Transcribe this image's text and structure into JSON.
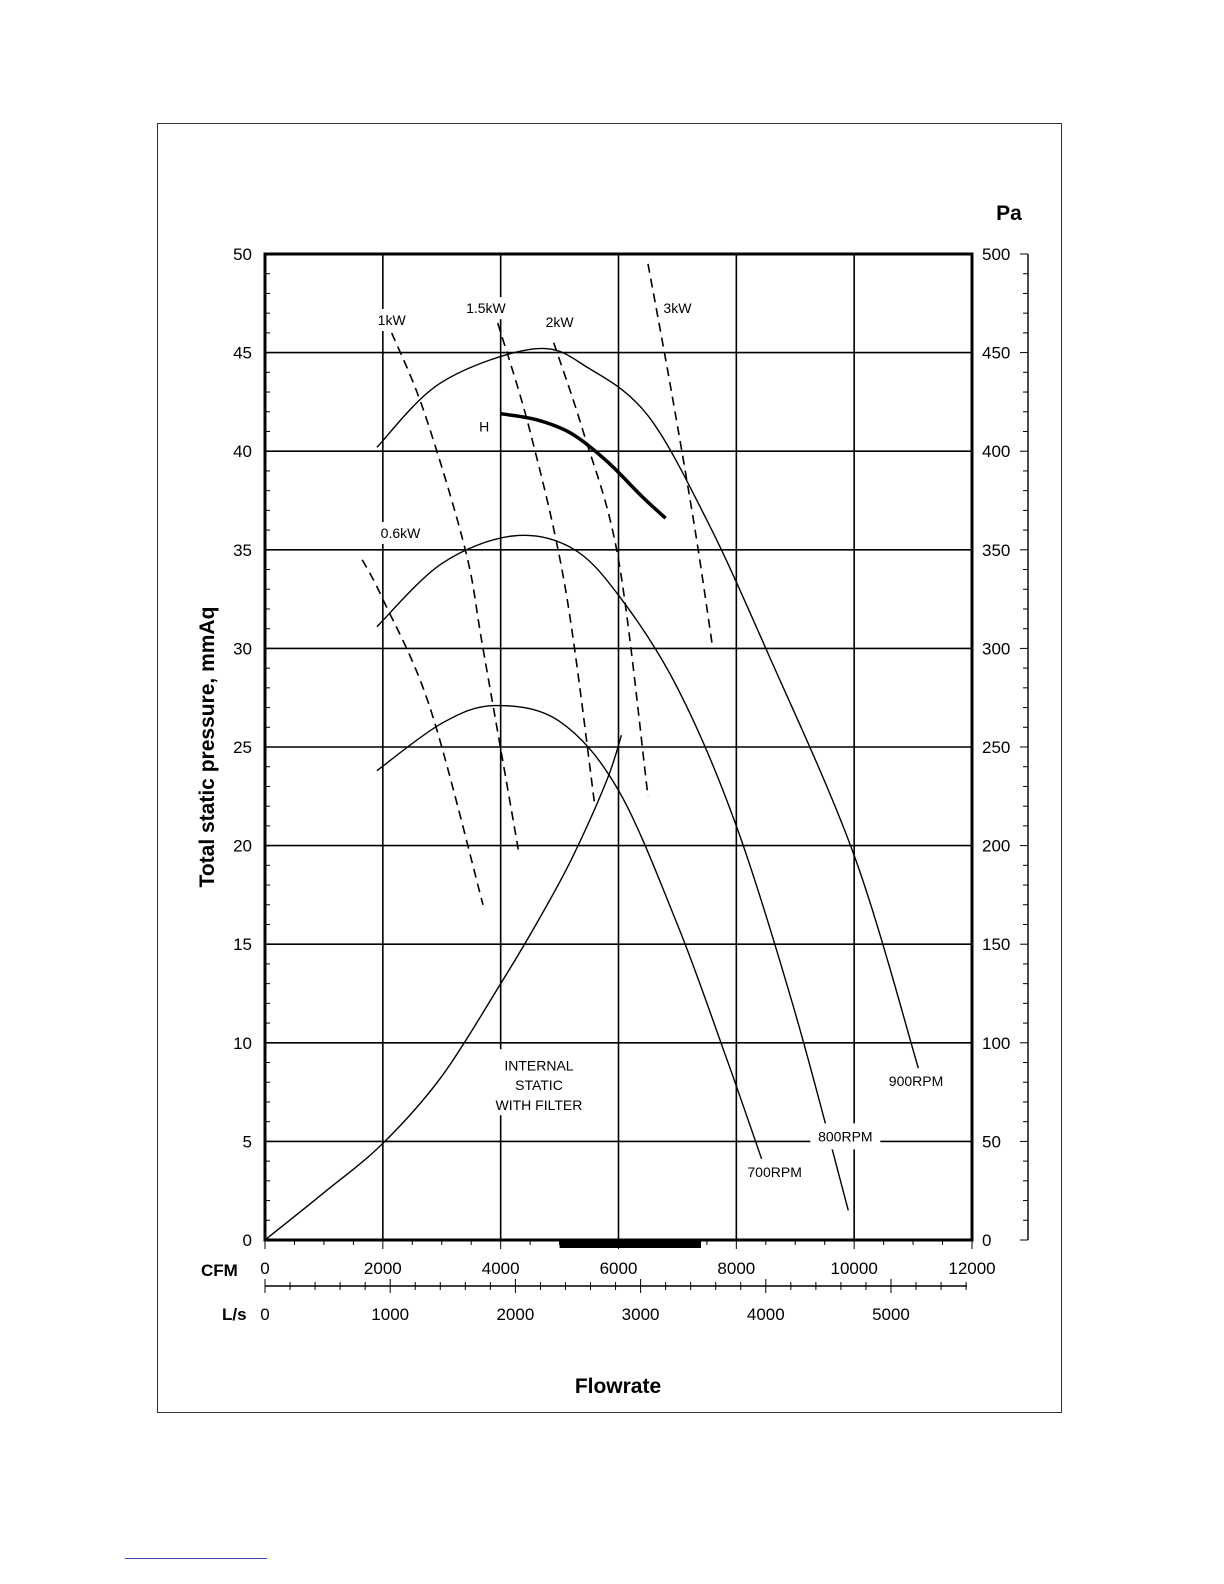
{
  "chart_data": {
    "type": "line",
    "title": "",
    "ylabel": "Total static pressure, mmAq",
    "y2label": "Pa",
    "xlabel": "Flowrate",
    "xaxis_primary_label": "CFM",
    "xaxis_secondary_label": "L/s",
    "xlim": [
      0,
      12000
    ],
    "ylim": [
      0,
      50
    ],
    "y2lim": [
      0,
      500
    ],
    "grid": true,
    "y_ticks": [
      0,
      5,
      10,
      15,
      20,
      25,
      30,
      35,
      40,
      45,
      50
    ],
    "y_tick_labels": [
      "0",
      "5",
      "10",
      "15",
      "20",
      "25",
      "30",
      "35",
      "40",
      "45",
      "50"
    ],
    "y2_ticks": [
      0,
      50,
      100,
      150,
      200,
      250,
      300,
      350,
      400,
      450,
      500
    ],
    "y2_tick_labels": [
      "0",
      "50",
      "100",
      "150",
      "200",
      "250",
      "300",
      "350",
      "400",
      "450",
      "500"
    ],
    "x_ticks": [
      0,
      2000,
      4000,
      6000,
      8000,
      10000,
      12000
    ],
    "x_tick_labels": [
      "0",
      "2000",
      "4000",
      "6000",
      "8000",
      "10000",
      "12000"
    ],
    "x2_ticks": [
      0,
      1000,
      2000,
      3000,
      4000,
      5000
    ],
    "x2_tick_labels": [
      "0",
      "1000",
      "2000",
      "3000",
      "4000",
      "5000"
    ],
    "operating_range": [
      5000,
      7400
    ],
    "rpm_curves": [
      {
        "name": "700RPM",
        "x": [
          1900,
          3000,
          3900,
          5000,
          6000,
          7000,
          7800,
          8500
        ],
        "y": [
          23.8,
          26.2,
          27.1,
          26.3,
          22.8,
          16.0,
          9.5,
          3.5
        ]
      },
      {
        "name": "800RPM",
        "x": [
          1900,
          3000,
          4200,
          5200,
          6000,
          7000,
          8000,
          9000,
          9900
        ],
        "y": [
          31.1,
          34.3,
          35.7,
          35.1,
          32.7,
          28.0,
          21.0,
          11.5,
          1.5
        ]
      },
      {
        "name": "900RPM",
        "x": [
          1900,
          3000,
          4600,
          5500,
          6500,
          7500,
          8500,
          10000,
          11100
        ],
        "y": [
          40.2,
          43.5,
          45.2,
          44.2,
          41.8,
          36.5,
          30.0,
          19.5,
          8.6
        ]
      }
    ],
    "h_curve": {
      "name": "H",
      "x": [
        4000,
        4600,
        5200,
        5800,
        6400,
        6800
      ],
      "y": [
        41.9,
        41.6,
        40.9,
        39.5,
        37.7,
        36.6
      ]
    },
    "system_curve": {
      "name": "INTERNAL STATIC WITH FILTER",
      "x": [
        0,
        1000,
        2000,
        3000,
        4000,
        4600,
        5200,
        5800,
        6050
      ],
      "y": [
        0,
        2.4,
        4.9,
        8.3,
        13.0,
        16.0,
        19.3,
        23.3,
        25.6
      ]
    },
    "power_lines": [
      {
        "name": "0.6kW",
        "x": [
          1650,
          2000,
          2800,
          3700
        ],
        "y": [
          34.5,
          32.5,
          27.0,
          17.0
        ]
      },
      {
        "name": "1kW",
        "x": [
          2150,
          2700,
          3400,
          3700,
          4300
        ],
        "y": [
          46.0,
          42.0,
          35.0,
          30.0,
          19.8
        ]
      },
      {
        "name": "1.5kW",
        "x": [
          3950,
          4500,
          5100,
          5600
        ],
        "y": [
          46.5,
          41.0,
          33.0,
          22.0
        ]
      },
      {
        "name": "2kW",
        "x": [
          4900,
          5400,
          6000,
          6500
        ],
        "y": [
          45.5,
          41.0,
          34.5,
          22.5
        ]
      },
      {
        "name": "3kW",
        "x": [
          6500,
          6900,
          7300,
          7600
        ],
        "y": [
          49.5,
          43.0,
          36.0,
          30.0
        ]
      }
    ],
    "annotations": {
      "h_label": "H",
      "internal_static_line1": "INTERNAL",
      "internal_static_line2": "STATIC",
      "internal_static_line3": "WITH FILTER"
    }
  }
}
